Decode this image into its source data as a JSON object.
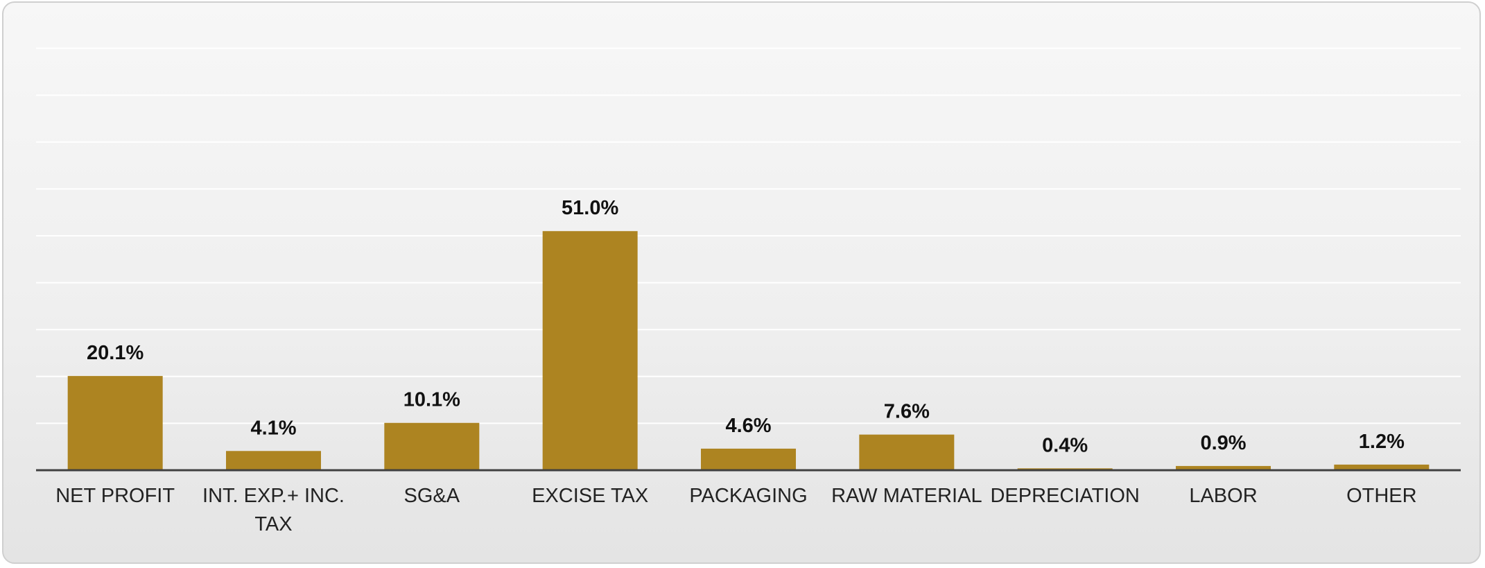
{
  "chart_data": {
    "type": "bar",
    "title": "",
    "xlabel": "",
    "ylabel": "",
    "categories": [
      [
        "NET PROFIT"
      ],
      [
        "INT. EXP.+ INC.",
        "TAX"
      ],
      [
        "SG&A"
      ],
      [
        "EXCISE TAX"
      ],
      [
        "PACKAGING"
      ],
      [
        "RAW MATERIAL"
      ],
      [
        "DEPRECIATION"
      ],
      [
        "LABOR"
      ],
      [
        "OTHER"
      ]
    ],
    "values": [
      20.1,
      4.1,
      10.1,
      51.0,
      4.6,
      7.6,
      0.4,
      0.9,
      1.2
    ],
    "data_labels": [
      "20.1%",
      "4.1%",
      "10.1%",
      "51.0%",
      "4.6%",
      "7.6%",
      "0.4%",
      "0.9%",
      "1.2%"
    ],
    "ylim": [
      0,
      90
    ],
    "gridline_step": 10,
    "grid": true,
    "legend": "none",
    "colors": {
      "bar": "#ad8421",
      "gridline": "#ffffff",
      "axis": "#404040"
    }
  }
}
